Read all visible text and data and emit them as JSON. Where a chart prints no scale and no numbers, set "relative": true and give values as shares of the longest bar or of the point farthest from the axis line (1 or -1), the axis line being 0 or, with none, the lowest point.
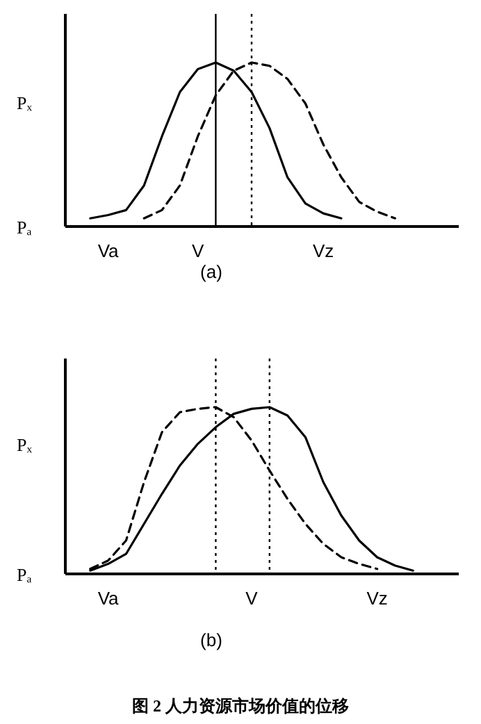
{
  "chart_data": [
    {
      "type": "line",
      "relative": true,
      "xlabel": "(a)",
      "categories": [
        null,
        null,
        "Va",
        null,
        null,
        null,
        null,
        "V",
        null,
        null,
        null,
        null,
        null,
        null,
        "Vz",
        null,
        null,
        null,
        null,
        null,
        null
      ],
      "annotations": [
        "Pₓ",
        "Pₐ"
      ],
      "series": [
        {
          "color": "#000000",
          "line_style": "solid",
          "values": [
            null,
            0.05,
            0.07,
            0.1,
            0.25,
            0.55,
            0.82,
            0.96,
            1,
            0.95,
            0.82,
            0.6,
            0.3,
            0.14,
            0.08,
            0.05,
            null,
            null,
            null,
            null,
            null
          ]
        },
        {
          "color": "#000000",
          "line_style": "dashed",
          "values": [
            null,
            null,
            null,
            null,
            0.05,
            0.1,
            0.25,
            0.55,
            0.8,
            0.95,
            1,
            0.98,
            0.9,
            0.75,
            0.5,
            0.3,
            0.15,
            0.09,
            0.05,
            null,
            null
          ]
        }
      ]
    },
    {
      "type": "line",
      "relative": true,
      "xlabel": "(b)",
      "categories": [
        null,
        null,
        "Va",
        null,
        null,
        null,
        null,
        null,
        null,
        null,
        "V",
        null,
        null,
        null,
        null,
        null,
        null,
        "Vz",
        null,
        null,
        null
      ],
      "annotations": [
        "Pₓ",
        "Pₐ",
        "图 2    人力资源市场价值的位移"
      ],
      "series": [
        {
          "color": "#000000",
          "line_style": "dashed",
          "values": [
            null,
            0.03,
            0.08,
            0.2,
            0.55,
            0.85,
            0.97,
            0.99,
            1,
            0.94,
            0.8,
            0.62,
            0.45,
            0.3,
            0.18,
            0.1,
            0.06,
            0.03,
            null,
            null,
            null
          ]
        },
        {
          "color": "#000000",
          "line_style": "solid",
          "values": [
            null,
            0.02,
            0.06,
            0.12,
            0.3,
            0.48,
            0.65,
            0.78,
            0.88,
            0.96,
            0.99,
            1,
            0.95,
            0.82,
            0.55,
            0.35,
            0.2,
            0.1,
            0.05,
            0.02,
            null
          ]
        }
      ]
    }
  ]
}
